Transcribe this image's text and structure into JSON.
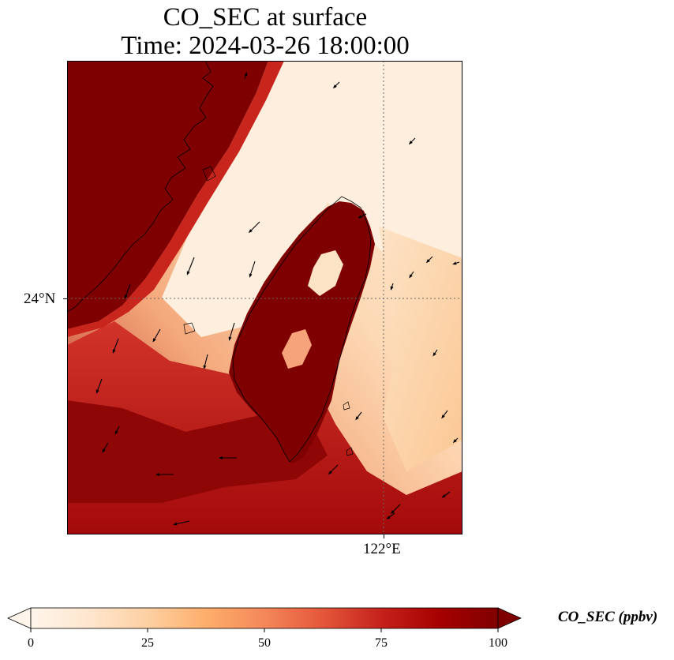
{
  "title": {
    "line1": "CO_SEC at surface",
    "line2": "Time: 2024-03-26 18:00:00"
  },
  "axes": {
    "lat_label": "24°N",
    "lon_label": "122°E"
  },
  "colorbar": {
    "title": "CO_SEC (ppbv)",
    "ticks": [
      "0",
      "25",
      "50",
      "75",
      "100"
    ],
    "range": [
      0,
      100
    ],
    "colormap": [
      "#fff5eb",
      "#fee6ce",
      "#fdd0a2",
      "#fdae6b",
      "#fd8d3c",
      "#f16913",
      "#d94801",
      "#b50000",
      "#7f0000"
    ]
  },
  "colors": {
    "high": "#7f0000",
    "low": "#fff5eb",
    "coastline": "#000000",
    "gridline": "#666666"
  }
}
